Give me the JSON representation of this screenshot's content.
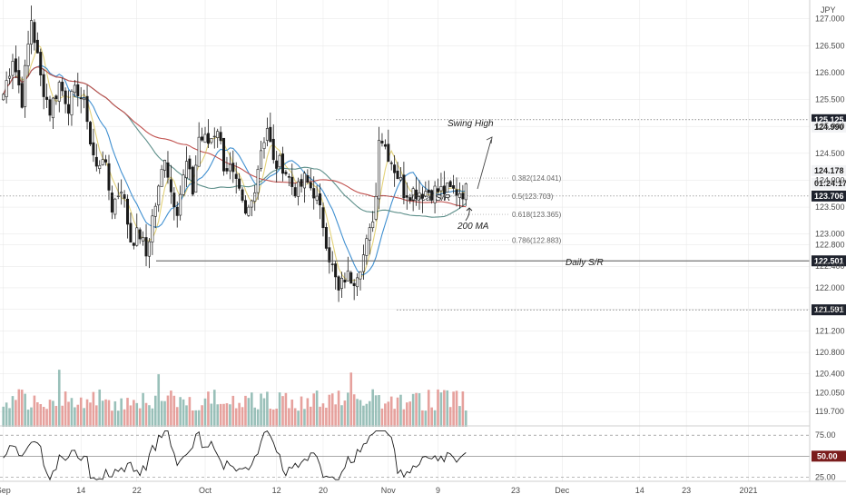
{
  "symbol_label": "JPY",
  "colors": {
    "up": "#1a1a1a",
    "down": "#1a1a1a",
    "ma_fast": "#e3d27a",
    "ma_mid": "#3f8fd0",
    "ma_slow": "#5d8f8a",
    "ma_200": "#c0504d",
    "vol_up": "#7fb0a8",
    "vol_down": "#e08a84",
    "rsi": "#1a1a1a",
    "tag_dark": "#1e222d",
    "tag_red": "#7a1c1c",
    "grid": "#e6e6e6"
  },
  "chart_data": {
    "type": "candlestick",
    "price_axis": {
      "ylim": [
        119.45,
        127.35
      ],
      "ticks": [
        127.0,
        126.5,
        126.0,
        125.5,
        125.0,
        124.5,
        124.0,
        123.5,
        123.0,
        122.8,
        122.4,
        122.0,
        121.6,
        121.2,
        120.8,
        120.4,
        120.05,
        119.7
      ],
      "tick_labels": [
        "127.000",
        "126.500",
        "126.000",
        "125.500",
        "125.000",
        "124.500",
        "124.000",
        "123.500",
        "123.000",
        "122.800",
        "122.400",
        "122.000",
        "121.600",
        "121.200",
        "120.800",
        "120.400",
        "120.050",
        "119.700"
      ]
    },
    "x_axis": {
      "labels": [
        "Sep",
        "14",
        "22",
        "Oct",
        "12",
        "20",
        "Nov",
        "9",
        "23",
        "Dec",
        "14",
        "23",
        "2021"
      ],
      "label_index": [
        0,
        25,
        43,
        65,
        88,
        103,
        124,
        140,
        165,
        180,
        205,
        220,
        240
      ],
      "total_slots": 260,
      "data_points": 150
    },
    "ohlc_anchors": [
      [
        0,
        125.6
      ],
      [
        3,
        126.3
      ],
      [
        6,
        125.5
      ],
      [
        9,
        127.0
      ],
      [
        12,
        125.9
      ],
      [
        15,
        125.3
      ],
      [
        18,
        125.8
      ],
      [
        21,
        125.4
      ],
      [
        24,
        125.7
      ],
      [
        27,
        125.2
      ],
      [
        28,
        124.7
      ],
      [
        30,
        124.2
      ],
      [
        32,
        124.5
      ],
      [
        35,
        123.5
      ],
      [
        38,
        123.9
      ],
      [
        41,
        122.9
      ],
      [
        44,
        123.0
      ],
      [
        46,
        122.6
      ],
      [
        48,
        123.3
      ],
      [
        50,
        123.8
      ],
      [
        52,
        124.5
      ],
      [
        54,
        123.8
      ],
      [
        56,
        123.5
      ],
      [
        59,
        124.3
      ],
      [
        61,
        123.8
      ],
      [
        63,
        124.8
      ],
      [
        66,
        124.7
      ],
      [
        69,
        125.0
      ],
      [
        71,
        124.3
      ],
      [
        73,
        124.2
      ],
      [
        76,
        123.7
      ],
      [
        78,
        123.3
      ],
      [
        80,
        123.6
      ],
      [
        83,
        124.6
      ],
      [
        85,
        125.0
      ],
      [
        87,
        124.3
      ],
      [
        90,
        124.3
      ],
      [
        93,
        123.9
      ],
      [
        95,
        123.8
      ],
      [
        97,
        124.0
      ],
      [
        100,
        123.8
      ],
      [
        103,
        123.2
      ],
      [
        105,
        122.6
      ],
      [
        108,
        121.9
      ],
      [
        110,
        122.2
      ],
      [
        113,
        122.2
      ],
      [
        116,
        122.6
      ],
      [
        118,
        123.0
      ],
      [
        120,
        123.7
      ],
      [
        121,
        124.9
      ],
      [
        124,
        124.5
      ],
      [
        127,
        124.1
      ],
      [
        129,
        123.8
      ]
    ],
    "volume_level_range": [
      0.25,
      1.0
    ],
    "rsi": {
      "ylim": [
        20,
        85
      ],
      "ticks": [
        75.0,
        50.0,
        25.0
      ],
      "tick_labels": [
        "75.00",
        "50.00",
        "25.00"
      ],
      "current": "50.00"
    },
    "levels": [
      {
        "name": "swing-high-level",
        "price": 125.125,
        "label": "125.125",
        "style": "dotted",
        "tag": "dark"
      },
      {
        "name": "high-print-level",
        "price": 124.99,
        "label": "124.990",
        "style": "none",
        "tag": "light"
      },
      {
        "name": "last-close",
        "price": 124.178,
        "label": "124.178",
        "style": "none",
        "tag": "light"
      },
      {
        "name": "local-sr-level",
        "price": 123.706,
        "label": "123.706",
        "style": "dotted",
        "tag": "dark"
      },
      {
        "name": "daily-sr-level",
        "price": 122.501,
        "label": "122.501",
        "style": "solid",
        "tag": "dark"
      },
      {
        "name": "swing-low-level",
        "price": 121.591,
        "label": "121.591",
        "style": "dotted",
        "tag": "dark"
      }
    ],
    "countdown": "01:24:17",
    "fib": [
      {
        "label": "0.382(124.041)",
        "price": 124.041
      },
      {
        "label": "0.5(123.703)",
        "price": 123.703
      },
      {
        "label": "0.618(123.365)",
        "price": 123.365
      },
      {
        "label": "0.786(122.883)",
        "price": 122.883
      }
    ],
    "annotations": {
      "swing_high": "Swing High",
      "local_sr": "Local S/R",
      "ma200": "200 MA",
      "daily_sr": "Daily S/R"
    }
  }
}
